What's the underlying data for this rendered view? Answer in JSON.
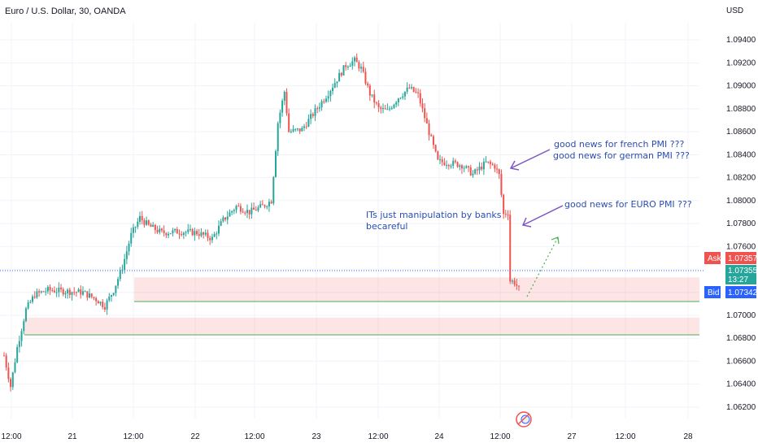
{
  "chart_data": {
    "type": "candlestick",
    "title": "Euro / U.S. Dollar, 30, OANDA",
    "currency_label": "USD",
    "ylim": [
      1.061,
      1.0955
    ],
    "y_ticks": [
      "1.06200",
      "1.06400",
      "1.06600",
      "1.06800",
      "1.07000",
      "1.07200",
      "1.07400",
      "1.07600",
      "1.07800",
      "1.08000",
      "1.08200",
      "1.08400",
      "1.08600",
      "1.08800",
      "1.09000",
      "1.09200",
      "1.09400"
    ],
    "x_ticks": [
      "12:00",
      "21",
      "12:00",
      "22",
      "12:00",
      "23",
      "12:00",
      "24",
      "12:00",
      "27",
      "12:00",
      "28"
    ],
    "up_color": "#26a69a",
    "down_color": "#ef5350",
    "anchors": [
      [
        0,
        1.0665
      ],
      [
        3,
        1.0638
      ],
      [
        6,
        1.0672
      ],
      [
        10,
        1.0705
      ],
      [
        14,
        1.0718
      ],
      [
        20,
        1.0722
      ],
      [
        28,
        1.0721
      ],
      [
        36,
        1.072
      ],
      [
        42,
        1.0714
      ],
      [
        46,
        1.0708
      ],
      [
        50,
        1.0722
      ],
      [
        54,
        1.0742
      ],
      [
        58,
        1.077
      ],
      [
        62,
        1.0785
      ],
      [
        66,
        1.0778
      ],
      [
        72,
        1.0772
      ],
      [
        80,
        1.0773
      ],
      [
        88,
        1.0772
      ],
      [
        95,
        1.0767
      ],
      [
        100,
        1.0783
      ],
      [
        106,
        1.0795
      ],
      [
        112,
        1.079
      ],
      [
        118,
        1.0795
      ],
      [
        122,
        1.08
      ],
      [
        125,
        1.0868
      ],
      [
        128,
        1.0895
      ],
      [
        130,
        1.086
      ],
      [
        136,
        1.0862
      ],
      [
        142,
        1.0878
      ],
      [
        148,
        1.0894
      ],
      [
        152,
        1.0906
      ],
      [
        156,
        1.0918
      ],
      [
        160,
        1.0922
      ],
      [
        163,
        1.0915
      ],
      [
        167,
        1.0893
      ],
      [
        171,
        1.088
      ],
      [
        175,
        1.0878
      ],
      [
        180,
        1.089
      ],
      [
        185,
        1.0898
      ],
      [
        189,
        1.0892
      ],
      [
        193,
        1.0866
      ],
      [
        198,
        1.0834
      ],
      [
        203,
        1.0833
      ],
      [
        209,
        1.0831
      ],
      [
        214,
        1.0823
      ],
      [
        220,
        1.0833
      ],
      [
        224,
        1.083
      ],
      [
        226,
        1.0822
      ],
      [
        228,
        1.0788
      ],
      [
        230,
        1.079
      ],
      [
        231,
        1.073
      ],
      [
        233,
        1.0729
      ],
      [
        235,
        1.0723
      ]
    ],
    "zones": [
      {
        "from": 1.0712,
        "to": 1.0733
      },
      {
        "from": 1.0683,
        "to": 1.0698
      }
    ],
    "ask": {
      "label": "Ask",
      "value": "1.07357"
    },
    "last": {
      "value": "1.07355",
      "countdown": "13:27"
    },
    "bid": {
      "label": "Bid",
      "value": "1.07342"
    },
    "annotations": {
      "french": "good news for french PMI     ???",
      "german": "good news for german PMI     ???",
      "euro": "good news for EURO  PMI     ???",
      "manip1": "ITs just manipulation by banks",
      "manip2": "becareful"
    }
  }
}
